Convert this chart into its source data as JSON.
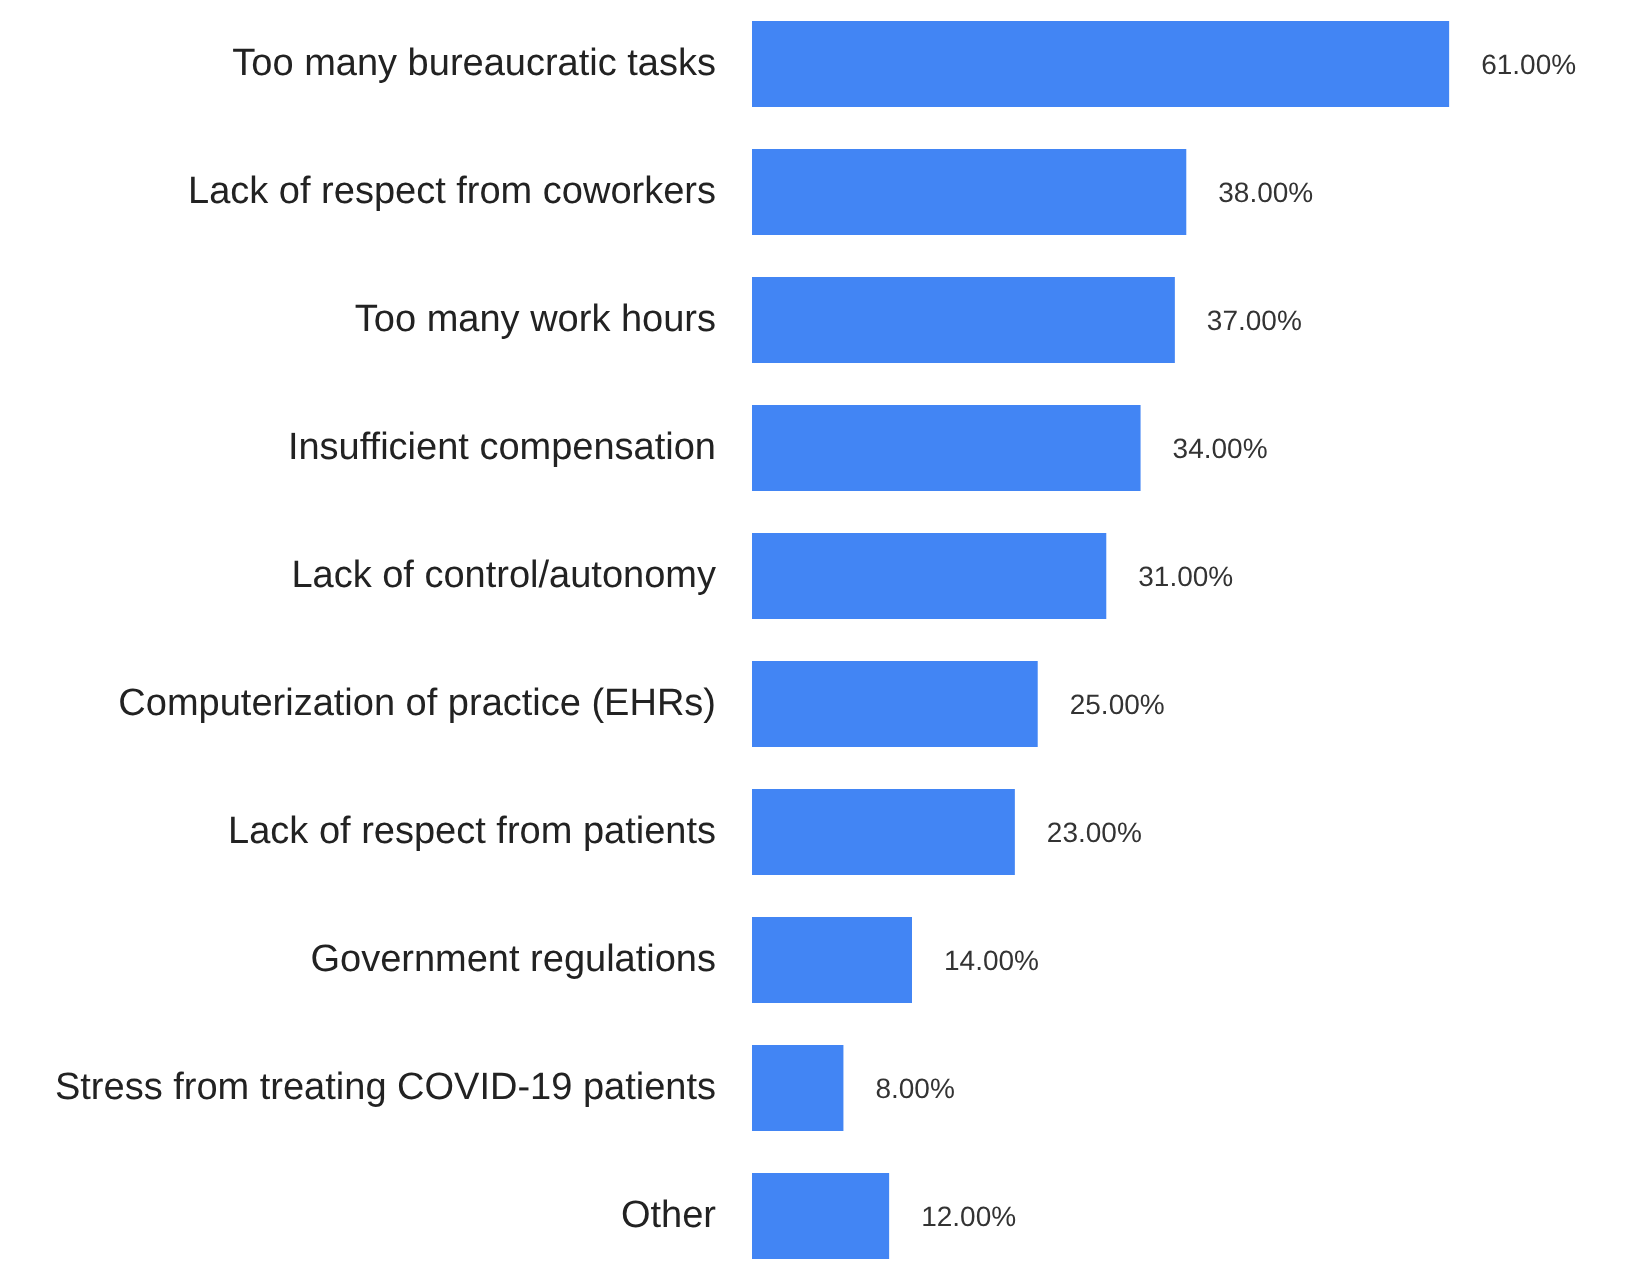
{
  "chart_data": {
    "type": "bar",
    "orientation": "horizontal",
    "categories": [
      "Too many bureaucratic tasks",
      "Lack of respect from coworkers",
      "Too many work hours",
      "Insufficient compensation",
      "Lack of control/autonomy",
      "Computerization of practice (EHRs)",
      "Lack of respect from patients",
      "Government regulations",
      "Stress from treating COVID-19 patients",
      "Other"
    ],
    "values": [
      61,
      38,
      37,
      34,
      31,
      25,
      23,
      14,
      8,
      12
    ],
    "value_labels": [
      "61.00%",
      "38.00%",
      "37.00%",
      "34.00%",
      "31.00%",
      "25.00%",
      "23.00%",
      "14.00%",
      "8.00%",
      "12.00%"
    ],
    "color": "#4285f4",
    "tick_labels": "y"
  }
}
